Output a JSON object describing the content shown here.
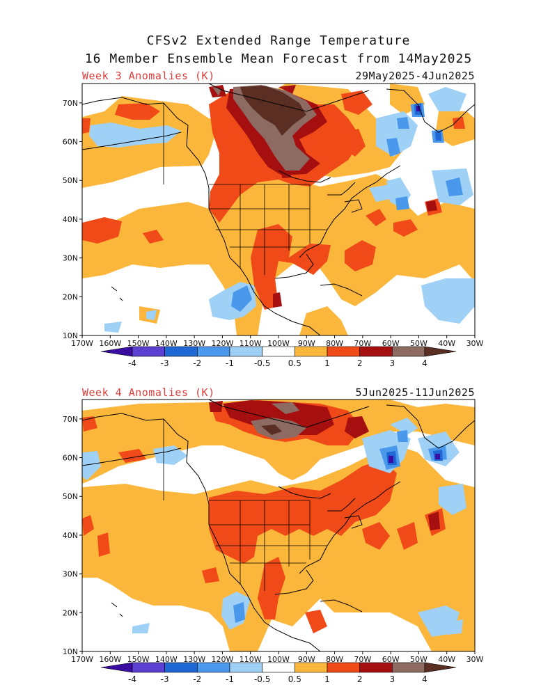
{
  "title_line1": "CFSv2 Extended Range Temperature",
  "title_line2": "16 Member Ensemble Mean Forecast from 14May2025",
  "panels": [
    {
      "label": "Week 3 Anomalies (K)",
      "dates": "29May2025-4Jun2025"
    },
    {
      "label": "Week 4 Anomalies (K)",
      "dates": "5Jun2025-11Jun2025"
    }
  ],
  "lat_labels": [
    "70N",
    "60N",
    "50N",
    "40N",
    "30N",
    "20N",
    "10N"
  ],
  "lon_labels": [
    "170W",
    "160W",
    "150W",
    "140W",
    "130W",
    "120W",
    "110W",
    "100W",
    "90W",
    "80W",
    "70W",
    "60W",
    "50W",
    "40W",
    "30W"
  ],
  "colorbar": {
    "labels": [
      "-4",
      "-3",
      "-2",
      "-1",
      "-0.5",
      "0.5",
      "1",
      "2",
      "3",
      "4"
    ],
    "colors": [
      "#3a0ca3",
      "#5b3fd1",
      "#1f68d4",
      "#4a98ec",
      "#9fd0f5",
      "#ffffff",
      "#fbb73c",
      "#f04a19",
      "#a50f0f",
      "#8d6a62",
      "#5a2e22"
    ]
  },
  "palette": {
    "warm1": "#fbb73c",
    "warm2": "#f04a19",
    "warm3": "#a50f0f",
    "warm4": "#8d6a62",
    "warm5": "#5a2e22",
    "cool1": "#9fd0f5",
    "cool2": "#4a98ec",
    "cool3": "#1f68d4",
    "cool4": "#3a0ca3"
  }
}
